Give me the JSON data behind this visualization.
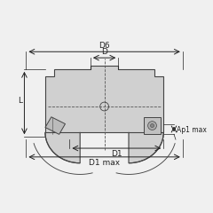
{
  "bg_color": "#f5f5f5",
  "line_color": "#333333",
  "body_fill": "#d0d0d0",
  "body_stroke": "#444444",
  "dim_color": "#222222",
  "dashed_color": "#555555",
  "insert_fill": "#cccccc",
  "labels": {
    "D6": "D6",
    "D": "D",
    "L": "L",
    "D1": "D1",
    "D1max": "D1 max",
    "Ap1max": "Ap1 max"
  },
  "fig_bg": "#f0f0f0"
}
